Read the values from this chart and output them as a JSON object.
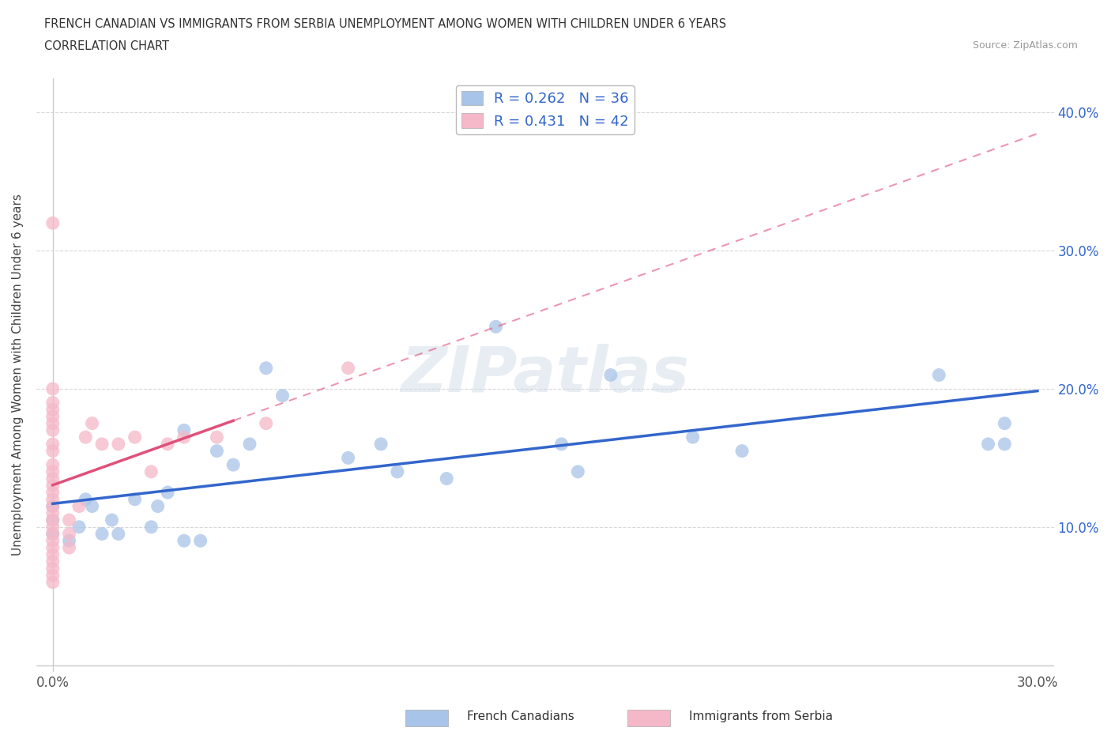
{
  "title_line1": "FRENCH CANADIAN VS IMMIGRANTS FROM SERBIA UNEMPLOYMENT AMONG WOMEN WITH CHILDREN UNDER 6 YEARS",
  "title_line2": "CORRELATION CHART",
  "source": "Source: ZipAtlas.com",
  "ylabel": "Unemployment Among Women with Children Under 6 years",
  "xlim": [
    -0.005,
    0.305
  ],
  "ylim": [
    -0.005,
    0.425
  ],
  "xtick_positions": [
    0.0,
    0.05,
    0.1,
    0.15,
    0.2,
    0.25,
    0.3
  ],
  "xticklabels": [
    "0.0%",
    "",
    "",
    "",
    "",
    "",
    "30.0%"
  ],
  "ytick_positions": [
    0.0,
    0.1,
    0.2,
    0.3,
    0.4
  ],
  "yticklabels_right": [
    "",
    "10.0%",
    "20.0%",
    "30.0%",
    "40.0%"
  ],
  "french_canadian_color": "#a8c4e8",
  "immigrant_serbia_color": "#f5b8c8",
  "french_canadian_line_color": "#3366cc",
  "immigrant_serbia_line_color": "#e0507a",
  "legend_color": "#3366cc",
  "watermark": "ZIPatlas",
  "background_color": "#ffffff",
  "grid_color": "#d8d8d8",
  "bottom_legend_fc_label": "French Canadians",
  "bottom_legend_is_label": "Immigrants from Serbia",
  "fc_x": [
    0.0,
    0.0,
    0.0,
    0.005,
    0.008,
    0.01,
    0.012,
    0.015,
    0.018,
    0.02,
    0.025,
    0.03,
    0.032,
    0.035,
    0.04,
    0.04,
    0.045,
    0.05,
    0.055,
    0.06,
    0.065,
    0.07,
    0.09,
    0.1,
    0.105,
    0.12,
    0.135,
    0.155,
    0.16,
    0.17,
    0.195,
    0.21,
    0.27,
    0.285,
    0.29,
    0.29
  ],
  "fc_y": [
    0.095,
    0.105,
    0.115,
    0.09,
    0.1,
    0.12,
    0.115,
    0.095,
    0.105,
    0.095,
    0.12,
    0.1,
    0.115,
    0.125,
    0.09,
    0.17,
    0.09,
    0.155,
    0.145,
    0.16,
    0.215,
    0.195,
    0.15,
    0.16,
    0.14,
    0.135,
    0.245,
    0.16,
    0.14,
    0.21,
    0.165,
    0.155,
    0.21,
    0.16,
    0.16,
    0.175
  ],
  "is_x": [
    0.0,
    0.0,
    0.0,
    0.0,
    0.0,
    0.0,
    0.0,
    0.0,
    0.0,
    0.0,
    0.0,
    0.0,
    0.0,
    0.0,
    0.0,
    0.0,
    0.0,
    0.0,
    0.0,
    0.0,
    0.0,
    0.0,
    0.0,
    0.0,
    0.0,
    0.0,
    0.0,
    0.005,
    0.005,
    0.005,
    0.008,
    0.01,
    0.012,
    0.015,
    0.02,
    0.025,
    0.03,
    0.035,
    0.04,
    0.05,
    0.065,
    0.09
  ],
  "is_y": [
    0.06,
    0.065,
    0.07,
    0.075,
    0.08,
    0.085,
    0.09,
    0.095,
    0.1,
    0.105,
    0.11,
    0.115,
    0.12,
    0.125,
    0.13,
    0.135,
    0.14,
    0.145,
    0.155,
    0.16,
    0.17,
    0.175,
    0.18,
    0.185,
    0.19,
    0.2,
    0.32,
    0.085,
    0.095,
    0.105,
    0.115,
    0.165,
    0.175,
    0.16,
    0.16,
    0.165,
    0.14,
    0.16,
    0.165,
    0.165,
    0.175,
    0.215
  ]
}
